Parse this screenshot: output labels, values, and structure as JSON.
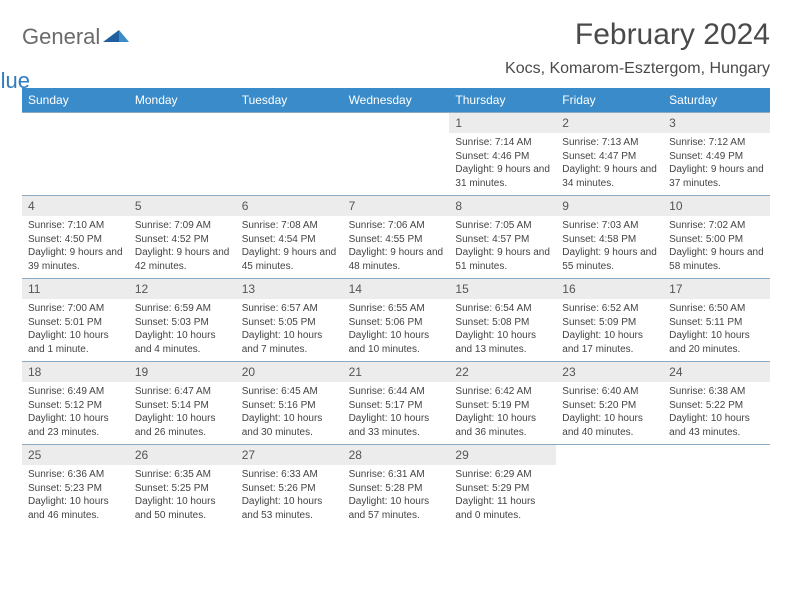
{
  "logo": {
    "text1": "General",
    "text2": "Blue"
  },
  "title": "February 2024",
  "location": "Kocs, Komarom-Esztergom, Hungary",
  "colors": {
    "header_bg": "#3a8bc9",
    "header_text": "#ffffff",
    "daynum_bg": "#ececec",
    "border": "#8aa9c2",
    "logo_gray": "#6b6b6b",
    "logo_blue": "#2f7bbf"
  },
  "weekdays": [
    "Sunday",
    "Monday",
    "Tuesday",
    "Wednesday",
    "Thursday",
    "Friday",
    "Saturday"
  ],
  "weeks": [
    [
      {
        "n": "",
        "sr": "",
        "ss": "",
        "dl": ""
      },
      {
        "n": "",
        "sr": "",
        "ss": "",
        "dl": ""
      },
      {
        "n": "",
        "sr": "",
        "ss": "",
        "dl": ""
      },
      {
        "n": "",
        "sr": "",
        "ss": "",
        "dl": ""
      },
      {
        "n": "1",
        "sr": "Sunrise: 7:14 AM",
        "ss": "Sunset: 4:46 PM",
        "dl": "Daylight: 9 hours and 31 minutes."
      },
      {
        "n": "2",
        "sr": "Sunrise: 7:13 AM",
        "ss": "Sunset: 4:47 PM",
        "dl": "Daylight: 9 hours and 34 minutes."
      },
      {
        "n": "3",
        "sr": "Sunrise: 7:12 AM",
        "ss": "Sunset: 4:49 PM",
        "dl": "Daylight: 9 hours and 37 minutes."
      }
    ],
    [
      {
        "n": "4",
        "sr": "Sunrise: 7:10 AM",
        "ss": "Sunset: 4:50 PM",
        "dl": "Daylight: 9 hours and 39 minutes."
      },
      {
        "n": "5",
        "sr": "Sunrise: 7:09 AM",
        "ss": "Sunset: 4:52 PM",
        "dl": "Daylight: 9 hours and 42 minutes."
      },
      {
        "n": "6",
        "sr": "Sunrise: 7:08 AM",
        "ss": "Sunset: 4:54 PM",
        "dl": "Daylight: 9 hours and 45 minutes."
      },
      {
        "n": "7",
        "sr": "Sunrise: 7:06 AM",
        "ss": "Sunset: 4:55 PM",
        "dl": "Daylight: 9 hours and 48 minutes."
      },
      {
        "n": "8",
        "sr": "Sunrise: 7:05 AM",
        "ss": "Sunset: 4:57 PM",
        "dl": "Daylight: 9 hours and 51 minutes."
      },
      {
        "n": "9",
        "sr": "Sunrise: 7:03 AM",
        "ss": "Sunset: 4:58 PM",
        "dl": "Daylight: 9 hours and 55 minutes."
      },
      {
        "n": "10",
        "sr": "Sunrise: 7:02 AM",
        "ss": "Sunset: 5:00 PM",
        "dl": "Daylight: 9 hours and 58 minutes."
      }
    ],
    [
      {
        "n": "11",
        "sr": "Sunrise: 7:00 AM",
        "ss": "Sunset: 5:01 PM",
        "dl": "Daylight: 10 hours and 1 minute."
      },
      {
        "n": "12",
        "sr": "Sunrise: 6:59 AM",
        "ss": "Sunset: 5:03 PM",
        "dl": "Daylight: 10 hours and 4 minutes."
      },
      {
        "n": "13",
        "sr": "Sunrise: 6:57 AM",
        "ss": "Sunset: 5:05 PM",
        "dl": "Daylight: 10 hours and 7 minutes."
      },
      {
        "n": "14",
        "sr": "Sunrise: 6:55 AM",
        "ss": "Sunset: 5:06 PM",
        "dl": "Daylight: 10 hours and 10 minutes."
      },
      {
        "n": "15",
        "sr": "Sunrise: 6:54 AM",
        "ss": "Sunset: 5:08 PM",
        "dl": "Daylight: 10 hours and 13 minutes."
      },
      {
        "n": "16",
        "sr": "Sunrise: 6:52 AM",
        "ss": "Sunset: 5:09 PM",
        "dl": "Daylight: 10 hours and 17 minutes."
      },
      {
        "n": "17",
        "sr": "Sunrise: 6:50 AM",
        "ss": "Sunset: 5:11 PM",
        "dl": "Daylight: 10 hours and 20 minutes."
      }
    ],
    [
      {
        "n": "18",
        "sr": "Sunrise: 6:49 AM",
        "ss": "Sunset: 5:12 PM",
        "dl": "Daylight: 10 hours and 23 minutes."
      },
      {
        "n": "19",
        "sr": "Sunrise: 6:47 AM",
        "ss": "Sunset: 5:14 PM",
        "dl": "Daylight: 10 hours and 26 minutes."
      },
      {
        "n": "20",
        "sr": "Sunrise: 6:45 AM",
        "ss": "Sunset: 5:16 PM",
        "dl": "Daylight: 10 hours and 30 minutes."
      },
      {
        "n": "21",
        "sr": "Sunrise: 6:44 AM",
        "ss": "Sunset: 5:17 PM",
        "dl": "Daylight: 10 hours and 33 minutes."
      },
      {
        "n": "22",
        "sr": "Sunrise: 6:42 AM",
        "ss": "Sunset: 5:19 PM",
        "dl": "Daylight: 10 hours and 36 minutes."
      },
      {
        "n": "23",
        "sr": "Sunrise: 6:40 AM",
        "ss": "Sunset: 5:20 PM",
        "dl": "Daylight: 10 hours and 40 minutes."
      },
      {
        "n": "24",
        "sr": "Sunrise: 6:38 AM",
        "ss": "Sunset: 5:22 PM",
        "dl": "Daylight: 10 hours and 43 minutes."
      }
    ],
    [
      {
        "n": "25",
        "sr": "Sunrise: 6:36 AM",
        "ss": "Sunset: 5:23 PM",
        "dl": "Daylight: 10 hours and 46 minutes."
      },
      {
        "n": "26",
        "sr": "Sunrise: 6:35 AM",
        "ss": "Sunset: 5:25 PM",
        "dl": "Daylight: 10 hours and 50 minutes."
      },
      {
        "n": "27",
        "sr": "Sunrise: 6:33 AM",
        "ss": "Sunset: 5:26 PM",
        "dl": "Daylight: 10 hours and 53 minutes."
      },
      {
        "n": "28",
        "sr": "Sunrise: 6:31 AM",
        "ss": "Sunset: 5:28 PM",
        "dl": "Daylight: 10 hours and 57 minutes."
      },
      {
        "n": "29",
        "sr": "Sunrise: 6:29 AM",
        "ss": "Sunset: 5:29 PM",
        "dl": "Daylight: 11 hours and 0 minutes."
      },
      {
        "n": "",
        "sr": "",
        "ss": "",
        "dl": ""
      },
      {
        "n": "",
        "sr": "",
        "ss": "",
        "dl": ""
      }
    ]
  ]
}
